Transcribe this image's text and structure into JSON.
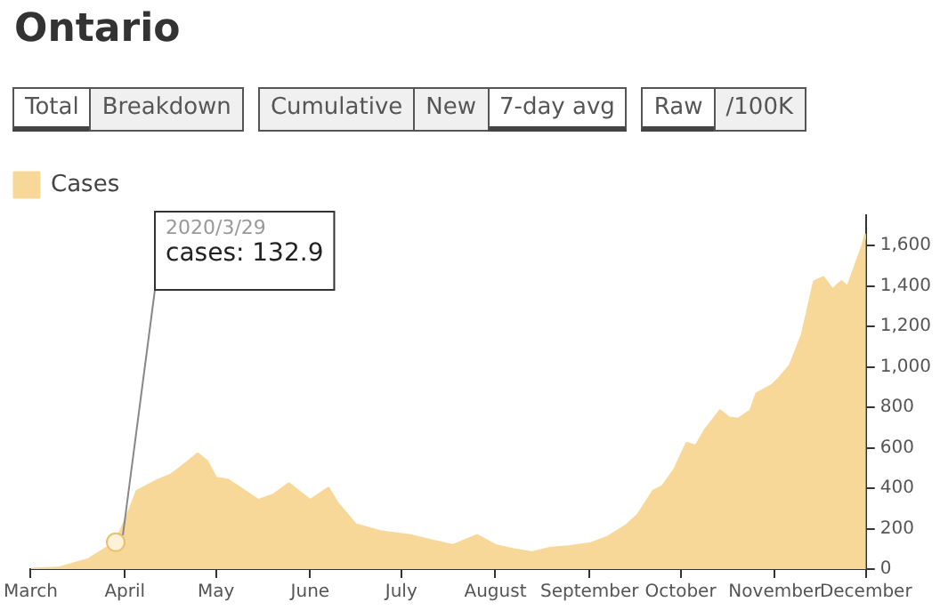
{
  "chart_data": {
    "type": "area",
    "title": "Ontario",
    "annotations": [
      "Total",
      "Breakdown",
      "Cumulative",
      "New",
      "7-day avg",
      "Raw",
      "/100K",
      {
        "text": "2020/3/29\ncases: 132.9",
        "x": "2020-03-29",
        "y": 132.9
      }
    ],
    "x": [
      "2020-03-01",
      "2020-03-10",
      "2020-03-20",
      "2020-03-29",
      "2020-04-02",
      "2020-04-05",
      "2020-04-12",
      "2020-04-16",
      "2020-04-19",
      "2020-04-25",
      "2020-04-28",
      "2020-05-01",
      "2020-05-05",
      "2020-05-09",
      "2020-05-15",
      "2020-05-20",
      "2020-05-25",
      "2020-06-01",
      "2020-06-07",
      "2020-06-10",
      "2020-06-16",
      "2020-06-24",
      "2020-07-04",
      "2020-07-10",
      "2020-07-18",
      "2020-07-26",
      "2020-08-01",
      "2020-08-07",
      "2020-08-13",
      "2020-08-19",
      "2020-08-25",
      "2020-09-01",
      "2020-09-07",
      "2020-09-13",
      "2020-09-17",
      "2020-09-22",
      "2020-09-25",
      "2020-09-29",
      "2020-10-03",
      "2020-10-06",
      "2020-10-09",
      "2020-10-14",
      "2020-10-17",
      "2020-10-20",
      "2020-10-24",
      "2020-10-26",
      "2020-10-31",
      "2020-11-02",
      "2020-11-06",
      "2020-11-10",
      "2020-11-14",
      "2020-11-17",
      "2020-11-20",
      "2020-11-23",
      "2020-11-25",
      "2020-11-28",
      "2020-11-30",
      "2020-12-01"
    ],
    "series": [
      {
        "name": "Cases",
        "color": "#f7d898",
        "values": [
          0,
          5,
          47,
          132.9,
          270,
          386,
          440,
          464,
          497,
          570,
          533,
          450,
          440,
          400,
          340,
          367,
          422,
          340,
          400,
          325,
          220,
          186,
          166,
          144,
          117,
          166,
          117,
          97,
          81,
          103,
          111,
          125,
          158,
          214,
          269,
          386,
          408,
          492,
          622,
          608,
          686,
          783,
          747,
          742,
          783,
          867,
          908,
          936,
          1006,
          1158,
          1422,
          1442,
          1381,
          1422,
          1394,
          1519,
          1603,
          1658
        ]
      }
    ],
    "xlim": [
      "2020-03-01",
      "2020-12-01"
    ],
    "xticks": [
      {
        "value": "2020-03-01",
        "label": "March"
      },
      {
        "value": "2020-04-01",
        "label": "April"
      },
      {
        "value": "2020-05-01",
        "label": "May"
      },
      {
        "value": "2020-06-01",
        "label": "June"
      },
      {
        "value": "2020-07-01",
        "label": "July"
      },
      {
        "value": "2020-08-01",
        "label": "August"
      },
      {
        "value": "2020-09-01",
        "label": "September"
      },
      {
        "value": "2020-10-01",
        "label": "October"
      },
      {
        "value": "2020-11-01",
        "label": "November"
      },
      {
        "value": "2020-12-01",
        "label": "December"
      }
    ],
    "ylim": [
      0,
      1750
    ],
    "yticks": [
      0,
      200,
      400,
      600,
      800,
      {
        "value": 1000,
        "label": "1,000"
      },
      {
        "value": 1200,
        "label": "1,200"
      },
      {
        "value": 1400,
        "label": "1,400"
      },
      {
        "value": 1600,
        "label": "1,600"
      }
    ],
    "grid": false,
    "legend": "top left",
    "marker": "none"
  }
}
